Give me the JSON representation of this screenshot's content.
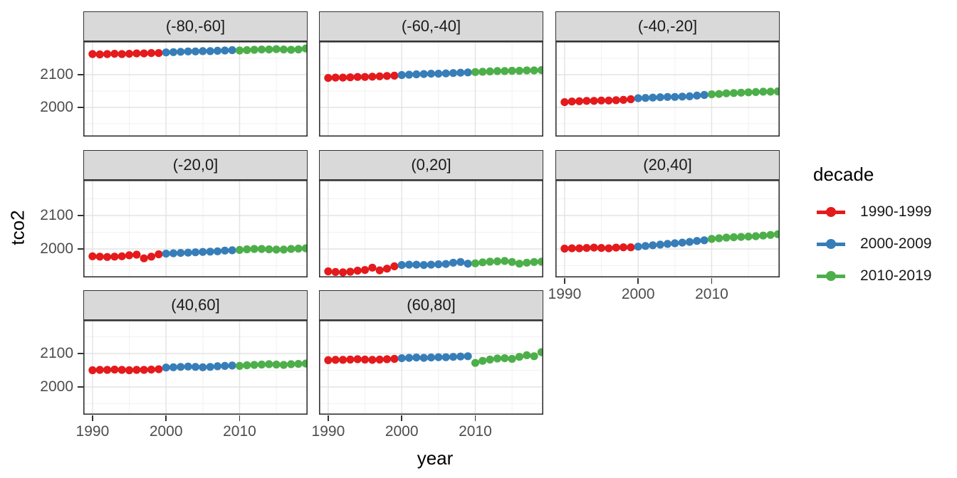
{
  "chart_data": {
    "type": "scatter",
    "title": "",
    "xlabel": "year",
    "ylabel": "tco2",
    "x_ticks": [
      1990,
      2000,
      2010
    ],
    "y_ticks": [
      2100,
      2000
    ],
    "y_minor_gridlines": [
      1950,
      2050,
      2150
    ],
    "x_minor_gridlines": [
      1995,
      2005,
      2015
    ],
    "x_domain": [
      1988.75,
      2019.25
    ],
    "y_domain": [
      1915,
      2200
    ],
    "grid": "on",
    "legend": {
      "title": "decade",
      "position": "right",
      "entries": [
        {
          "label": "1990-1999",
          "color": "#E41A1C",
          "from": 1990,
          "to": 1999
        },
        {
          "label": "2000-2009",
          "color": "#377EB8",
          "from": 2000,
          "to": 2009
        },
        {
          "label": "2010-2019",
          "color": "#4DAF4A",
          "from": 2010,
          "to": 2019
        }
      ]
    },
    "x": [
      1990,
      1991,
      1992,
      1993,
      1994,
      1995,
      1996,
      1997,
      1998,
      1999,
      2000,
      2001,
      2002,
      2003,
      2004,
      2005,
      2006,
      2007,
      2008,
      2009,
      2010,
      2011,
      2012,
      2013,
      2014,
      2015,
      2016,
      2017,
      2018,
      2019
    ],
    "facets": [
      {
        "label": "(-80,-60]",
        "row": 0,
        "col": 0,
        "values": [
          2163,
          2162,
          2163,
          2164,
          2163,
          2164,
          2165,
          2165,
          2166,
          2166,
          2168,
          2169,
          2170,
          2171,
          2171,
          2172,
          2172,
          2173,
          2174,
          2175,
          2174,
          2175,
          2176,
          2177,
          2177,
          2178,
          2177,
          2176,
          2177,
          2180
        ]
      },
      {
        "label": "(-60,-40]",
        "row": 0,
        "col": 1,
        "values": [
          2090,
          2091,
          2091,
          2092,
          2093,
          2093,
          2094,
          2095,
          2096,
          2097,
          2099,
          2100,
          2101,
          2102,
          2103,
          2103,
          2104,
          2105,
          2106,
          2107,
          2108,
          2109,
          2110,
          2111,
          2111,
          2112,
          2112,
          2113,
          2113,
          2114
        ]
      },
      {
        "label": "(-40,-20]",
        "row": 0,
        "col": 2,
        "values": [
          2016,
          2018,
          2019,
          2020,
          2020,
          2021,
          2021,
          2022,
          2023,
          2025,
          2028,
          2029,
          2030,
          2031,
          2032,
          2032,
          2033,
          2034,
          2036,
          2038,
          2040,
          2041,
          2043,
          2044,
          2045,
          2046,
          2047,
          2048,
          2048,
          2049
        ]
      },
      {
        "label": "(-20,0]",
        "row": 1,
        "col": 0,
        "values": [
          1978,
          1977,
          1976,
          1977,
          1978,
          1981,
          1983,
          1972,
          1977,
          1984,
          1986,
          1987,
          1988,
          1989,
          1990,
          1991,
          1992,
          1993,
          1995,
          1996,
          1997,
          1999,
          2000,
          2000,
          1999,
          1998,
          1998,
          2000,
          2001,
          2002
        ]
      },
      {
        "label": "(0,20]",
        "row": 1,
        "col": 1,
        "values": [
          1933,
          1931,
          1930,
          1932,
          1935,
          1937,
          1944,
          1936,
          1941,
          1948,
          1952,
          1953,
          1953,
          1952,
          1953,
          1954,
          1955,
          1959,
          1961,
          1956,
          1957,
          1960,
          1962,
          1963,
          1964,
          1961,
          1956,
          1959,
          1961,
          1962
        ]
      },
      {
        "label": "(20,40]",
        "row": 1,
        "col": 2,
        "values": [
          2001,
          2002,
          2002,
          2003,
          2004,
          2003,
          2002,
          2004,
          2005,
          2005,
          2007,
          2009,
          2011,
          2013,
          2015,
          2017,
          2019,
          2021,
          2024,
          2026,
          2030,
          2032,
          2034,
          2035,
          2036,
          2037,
          2038,
          2040,
          2042,
          2044
        ]
      },
      {
        "label": "(40,60]",
        "row": 2,
        "col": 0,
        "values": [
          2050,
          2051,
          2051,
          2052,
          2051,
          2050,
          2051,
          2051,
          2052,
          2053,
          2058,
          2059,
          2060,
          2061,
          2060,
          2059,
          2060,
          2062,
          2063,
          2064,
          2063,
          2065,
          2066,
          2067,
          2068,
          2067,
          2066,
          2068,
          2069,
          2070
        ]
      },
      {
        "label": "(60,80]",
        "row": 2,
        "col": 1,
        "values": [
          2080,
          2081,
          2081,
          2082,
          2083,
          2082,
          2081,
          2082,
          2083,
          2084,
          2086,
          2087,
          2088,
          2087,
          2088,
          2089,
          2089,
          2090,
          2091,
          2092,
          2072,
          2078,
          2082,
          2085,
          2086,
          2084,
          2090,
          2095,
          2092,
          2104
        ]
      }
    ]
  },
  "colors": {
    "strip_fill": "#D9D9D9",
    "border": "#333333",
    "grid_major": "#E3E3E3",
    "grid_minor": "#F1F1F1",
    "tick_label": "#4D4D4D",
    "axis_title": "#000000",
    "panel_bg": "#FFFFFF"
  }
}
